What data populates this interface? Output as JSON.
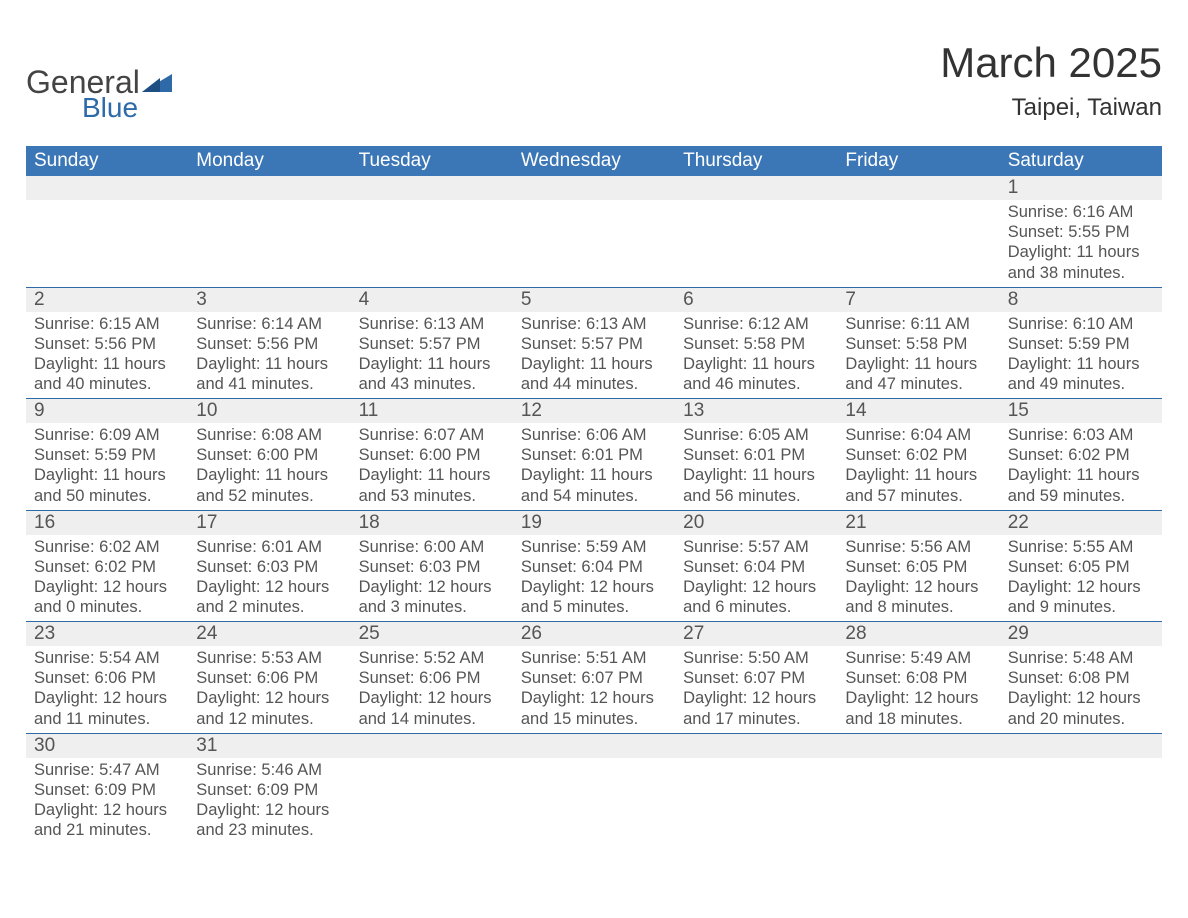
{
  "brand": {
    "word1": "General",
    "word2": "Blue",
    "text_color": "#444444",
    "accent_color": "#2f6aa8"
  },
  "title": {
    "month": "March 2025",
    "location": "Taipei, Taiwan",
    "title_fontsize": 42,
    "location_fontsize": 24,
    "title_color": "#333333"
  },
  "calendar": {
    "type": "table",
    "header_bg": "#3b76b6",
    "header_fg": "#ffffff",
    "daynum_bg": "#efefef",
    "divider_color": "#2f6aa8",
    "body_fg": "#555555",
    "body_fontsize": 16.5,
    "header_fontsize": 19,
    "columns": [
      "Sunday",
      "Monday",
      "Tuesday",
      "Wednesday",
      "Thursday",
      "Friday",
      "Saturday"
    ],
    "weeks": [
      [
        {},
        {},
        {},
        {},
        {},
        {},
        {
          "d": "1",
          "sr": "Sunrise: 6:16 AM",
          "ss": "Sunset: 5:55 PM",
          "dl": "Daylight: 11 hours and 38 minutes."
        }
      ],
      [
        {
          "d": "2",
          "sr": "Sunrise: 6:15 AM",
          "ss": "Sunset: 5:56 PM",
          "dl": "Daylight: 11 hours and 40 minutes."
        },
        {
          "d": "3",
          "sr": "Sunrise: 6:14 AM",
          "ss": "Sunset: 5:56 PM",
          "dl": "Daylight: 11 hours and 41 minutes."
        },
        {
          "d": "4",
          "sr": "Sunrise: 6:13 AM",
          "ss": "Sunset: 5:57 PM",
          "dl": "Daylight: 11 hours and 43 minutes."
        },
        {
          "d": "5",
          "sr": "Sunrise: 6:13 AM",
          "ss": "Sunset: 5:57 PM",
          "dl": "Daylight: 11 hours and 44 minutes."
        },
        {
          "d": "6",
          "sr": "Sunrise: 6:12 AM",
          "ss": "Sunset: 5:58 PM",
          "dl": "Daylight: 11 hours and 46 minutes."
        },
        {
          "d": "7",
          "sr": "Sunrise: 6:11 AM",
          "ss": "Sunset: 5:58 PM",
          "dl": "Daylight: 11 hours and 47 minutes."
        },
        {
          "d": "8",
          "sr": "Sunrise: 6:10 AM",
          "ss": "Sunset: 5:59 PM",
          "dl": "Daylight: 11 hours and 49 minutes."
        }
      ],
      [
        {
          "d": "9",
          "sr": "Sunrise: 6:09 AM",
          "ss": "Sunset: 5:59 PM",
          "dl": "Daylight: 11 hours and 50 minutes."
        },
        {
          "d": "10",
          "sr": "Sunrise: 6:08 AM",
          "ss": "Sunset: 6:00 PM",
          "dl": "Daylight: 11 hours and 52 minutes."
        },
        {
          "d": "11",
          "sr": "Sunrise: 6:07 AM",
          "ss": "Sunset: 6:00 PM",
          "dl": "Daylight: 11 hours and 53 minutes."
        },
        {
          "d": "12",
          "sr": "Sunrise: 6:06 AM",
          "ss": "Sunset: 6:01 PM",
          "dl": "Daylight: 11 hours and 54 minutes."
        },
        {
          "d": "13",
          "sr": "Sunrise: 6:05 AM",
          "ss": "Sunset: 6:01 PM",
          "dl": "Daylight: 11 hours and 56 minutes."
        },
        {
          "d": "14",
          "sr": "Sunrise: 6:04 AM",
          "ss": "Sunset: 6:02 PM",
          "dl": "Daylight: 11 hours and 57 minutes."
        },
        {
          "d": "15",
          "sr": "Sunrise: 6:03 AM",
          "ss": "Sunset: 6:02 PM",
          "dl": "Daylight: 11 hours and 59 minutes."
        }
      ],
      [
        {
          "d": "16",
          "sr": "Sunrise: 6:02 AM",
          "ss": "Sunset: 6:02 PM",
          "dl": "Daylight: 12 hours and 0 minutes."
        },
        {
          "d": "17",
          "sr": "Sunrise: 6:01 AM",
          "ss": "Sunset: 6:03 PM",
          "dl": "Daylight: 12 hours and 2 minutes."
        },
        {
          "d": "18",
          "sr": "Sunrise: 6:00 AM",
          "ss": "Sunset: 6:03 PM",
          "dl": "Daylight: 12 hours and 3 minutes."
        },
        {
          "d": "19",
          "sr": "Sunrise: 5:59 AM",
          "ss": "Sunset: 6:04 PM",
          "dl": "Daylight: 12 hours and 5 minutes."
        },
        {
          "d": "20",
          "sr": "Sunrise: 5:57 AM",
          "ss": "Sunset: 6:04 PM",
          "dl": "Daylight: 12 hours and 6 minutes."
        },
        {
          "d": "21",
          "sr": "Sunrise: 5:56 AM",
          "ss": "Sunset: 6:05 PM",
          "dl": "Daylight: 12 hours and 8 minutes."
        },
        {
          "d": "22",
          "sr": "Sunrise: 5:55 AM",
          "ss": "Sunset: 6:05 PM",
          "dl": "Daylight: 12 hours and 9 minutes."
        }
      ],
      [
        {
          "d": "23",
          "sr": "Sunrise: 5:54 AM",
          "ss": "Sunset: 6:06 PM",
          "dl": "Daylight: 12 hours and 11 minutes."
        },
        {
          "d": "24",
          "sr": "Sunrise: 5:53 AM",
          "ss": "Sunset: 6:06 PM",
          "dl": "Daylight: 12 hours and 12 minutes."
        },
        {
          "d": "25",
          "sr": "Sunrise: 5:52 AM",
          "ss": "Sunset: 6:06 PM",
          "dl": "Daylight: 12 hours and 14 minutes."
        },
        {
          "d": "26",
          "sr": "Sunrise: 5:51 AM",
          "ss": "Sunset: 6:07 PM",
          "dl": "Daylight: 12 hours and 15 minutes."
        },
        {
          "d": "27",
          "sr": "Sunrise: 5:50 AM",
          "ss": "Sunset: 6:07 PM",
          "dl": "Daylight: 12 hours and 17 minutes."
        },
        {
          "d": "28",
          "sr": "Sunrise: 5:49 AM",
          "ss": "Sunset: 6:08 PM",
          "dl": "Daylight: 12 hours and 18 minutes."
        },
        {
          "d": "29",
          "sr": "Sunrise: 5:48 AM",
          "ss": "Sunset: 6:08 PM",
          "dl": "Daylight: 12 hours and 20 minutes."
        }
      ],
      [
        {
          "d": "30",
          "sr": "Sunrise: 5:47 AM",
          "ss": "Sunset: 6:09 PM",
          "dl": "Daylight: 12 hours and 21 minutes."
        },
        {
          "d": "31",
          "sr": "Sunrise: 5:46 AM",
          "ss": "Sunset: 6:09 PM",
          "dl": "Daylight: 12 hours and 23 minutes."
        },
        {},
        {},
        {},
        {},
        {}
      ]
    ]
  }
}
